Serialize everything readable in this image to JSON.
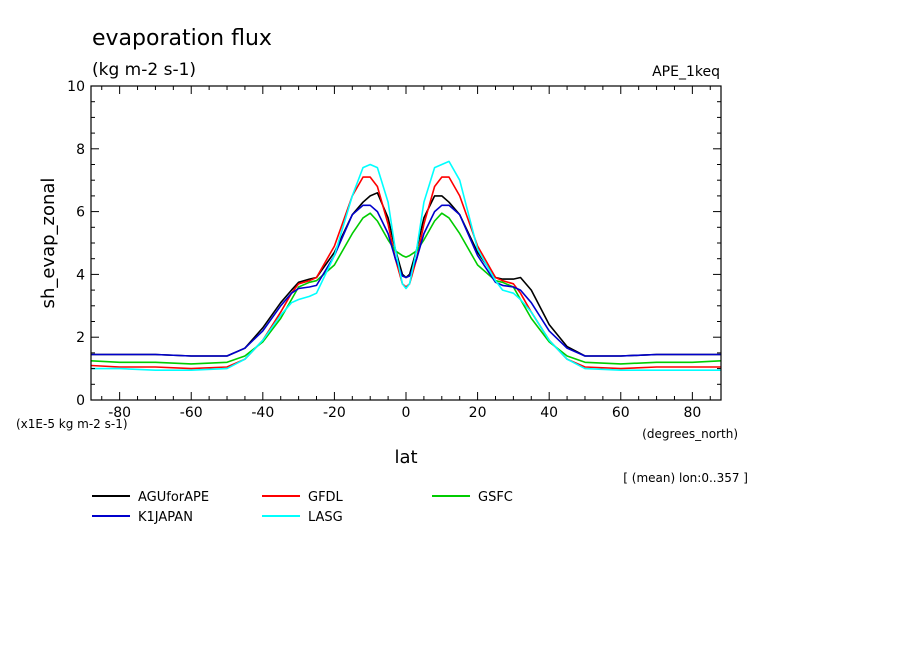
{
  "chart_data": {
    "type": "line",
    "title": "evaporation flux",
    "units": "(kg m-2 s-1)",
    "experiment": "APE_1keq",
    "xlabel": "lat",
    "xunits": "(degrees_north)",
    "ylabel": "sh_evap_zonal",
    "yscale_note": "(x1E-5 kg m-2 s-1)",
    "mean_note": "[ (mean) lon:0..357 ]",
    "xlim": [
      -88,
      88
    ],
    "ylim": [
      0,
      10
    ],
    "xticks": [
      -80,
      -60,
      -40,
      -20,
      0,
      20,
      40,
      60,
      80
    ],
    "yticks": [
      0,
      2,
      4,
      6,
      8,
      10
    ],
    "x": [
      -88,
      -80,
      -70,
      -60,
      -50,
      -45,
      -40,
      -35,
      -32,
      -30,
      -27,
      -25,
      -20,
      -15,
      -12,
      -10,
      -8,
      -5,
      -3,
      -1,
      0,
      1,
      3,
      5,
      8,
      10,
      12,
      15,
      20,
      25,
      27,
      30,
      32,
      35,
      40,
      45,
      50,
      60,
      70,
      80,
      88
    ],
    "series": [
      {
        "name": "AGUforAPE",
        "color": "#000000",
        "values": [
          1.45,
          1.45,
          1.45,
          1.4,
          1.4,
          1.65,
          2.3,
          3.1,
          3.5,
          3.75,
          3.85,
          3.9,
          4.7,
          5.9,
          6.3,
          6.5,
          6.6,
          5.8,
          4.8,
          4.0,
          3.9,
          4.0,
          4.8,
          5.8,
          6.5,
          6.5,
          6.3,
          5.9,
          4.7,
          3.9,
          3.85,
          3.85,
          3.9,
          3.5,
          2.4,
          1.7,
          1.4,
          1.4,
          1.45,
          1.45,
          1.45
        ]
      },
      {
        "name": "GFDL",
        "color": "#ff0000",
        "values": [
          1.1,
          1.05,
          1.05,
          1.0,
          1.05,
          1.3,
          1.9,
          2.8,
          3.4,
          3.7,
          3.8,
          3.9,
          4.9,
          6.5,
          7.1,
          7.1,
          6.8,
          5.6,
          4.5,
          3.7,
          3.6,
          3.7,
          4.5,
          5.6,
          6.8,
          7.1,
          7.1,
          6.5,
          4.9,
          3.9,
          3.8,
          3.7,
          3.4,
          2.8,
          1.9,
          1.3,
          1.05,
          1.0,
          1.05,
          1.05,
          1.05
        ]
      },
      {
        "name": "GSFC",
        "color": "#00cc00",
        "values": [
          1.25,
          1.2,
          1.2,
          1.15,
          1.2,
          1.4,
          1.85,
          2.6,
          3.2,
          3.6,
          3.75,
          3.8,
          4.3,
          5.3,
          5.8,
          5.95,
          5.7,
          5.1,
          4.75,
          4.6,
          4.55,
          4.6,
          4.75,
          5.1,
          5.7,
          5.95,
          5.8,
          5.3,
          4.3,
          3.8,
          3.75,
          3.6,
          3.2,
          2.6,
          1.85,
          1.4,
          1.2,
          1.15,
          1.2,
          1.2,
          1.25
        ]
      },
      {
        "name": "K1JAPAN",
        "color": "#0000cc",
        "values": [
          1.45,
          1.45,
          1.45,
          1.4,
          1.4,
          1.65,
          2.2,
          3.0,
          3.4,
          3.55,
          3.6,
          3.65,
          4.6,
          5.9,
          6.2,
          6.2,
          6.0,
          5.3,
          4.5,
          3.95,
          3.9,
          3.95,
          4.5,
          5.3,
          6.0,
          6.2,
          6.2,
          5.9,
          4.6,
          3.75,
          3.65,
          3.6,
          3.5,
          3.1,
          2.2,
          1.65,
          1.4,
          1.4,
          1.45,
          1.45,
          1.45
        ]
      },
      {
        "name": "LASG",
        "color": "#00ffff",
        "values": [
          1.0,
          1.0,
          0.95,
          0.95,
          1.0,
          1.3,
          1.9,
          2.7,
          3.1,
          3.2,
          3.3,
          3.4,
          4.6,
          6.5,
          7.4,
          7.5,
          7.4,
          6.3,
          4.8,
          3.7,
          3.55,
          3.7,
          4.8,
          6.3,
          7.4,
          7.5,
          7.6,
          7.0,
          4.8,
          3.8,
          3.5,
          3.4,
          3.2,
          2.8,
          1.9,
          1.3,
          1.0,
          0.95,
          0.95,
          0.95,
          0.95
        ]
      }
    ]
  }
}
